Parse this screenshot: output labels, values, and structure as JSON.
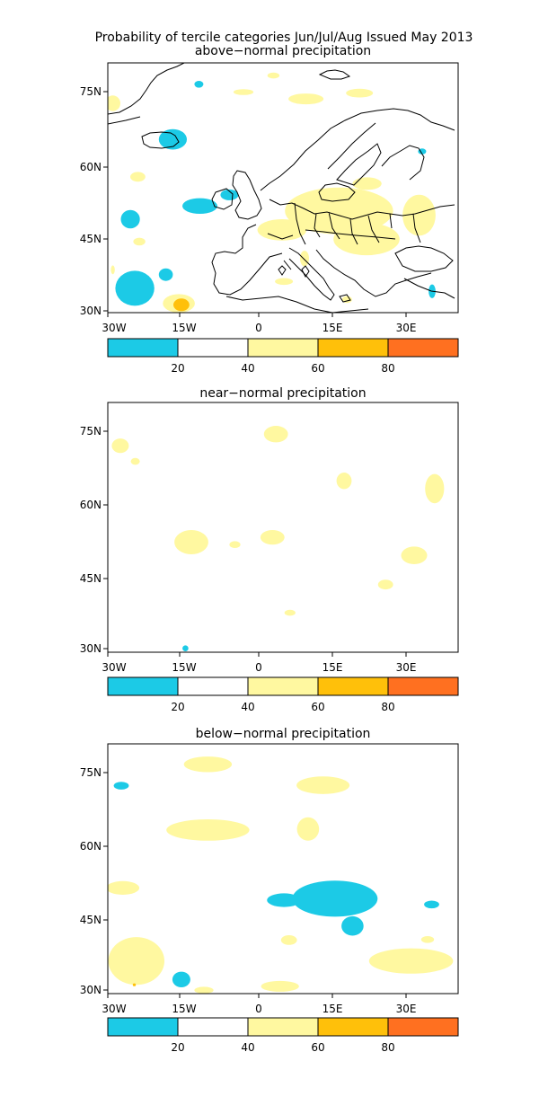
{
  "title_line1": "Probability of tercile categories Jun/Jul/Aug Issued May 2013",
  "colors": {
    "cyan": "#1ccae6",
    "white": "#ffffff",
    "yellow": "#fff8a0",
    "gold": "#ffc00a",
    "orange": "#ff7020"
  },
  "colorbar": {
    "labels": [
      "20",
      "40",
      "60",
      "80"
    ]
  },
  "axes": {
    "x_labels": [
      "30W",
      "15W",
      "0",
      "15E",
      "30E"
    ],
    "y_labels": [
      "75N",
      "60N",
      "45N",
      "30N"
    ]
  },
  "panels": [
    {
      "id": "above",
      "title": "above−normal precipitation",
      "fields": [
        {
          "cat": "yellow",
          "lon": -29,
          "lat": 72.7,
          "rlon": 1.5,
          "rlat": 1.6
        },
        {
          "cat": "cyan",
          "lon": -11.8,
          "lat": 76.6,
          "rlon": 0.9,
          "rlat": 0.7
        },
        {
          "cat": "yellow",
          "lon": -2.9,
          "lat": 75,
          "rlon": 2.0,
          "rlat": 0.6
        },
        {
          "cat": "yellow",
          "lon": 3.1,
          "lat": 78.4,
          "rlon": 1.2,
          "rlat": 0.6
        },
        {
          "cat": "yellow",
          "lon": 9.6,
          "lat": 73.6,
          "rlon": 3.5,
          "rlat": 1.1
        },
        {
          "cat": "yellow",
          "lon": 20.3,
          "lat": 74.8,
          "rlon": 2.7,
          "rlat": 0.9
        },
        {
          "cat": "cyan",
          "lon": -17,
          "lat": 65.3,
          "rlon": 2.8,
          "rlat": 2.1
        },
        {
          "cat": "yellow",
          "lon": -24,
          "lat": 57.6,
          "rlon": 1.5,
          "rlat": 1.0
        },
        {
          "cat": "cyan",
          "lon": -25.5,
          "lat": 48.9,
          "rlon": 1.9,
          "rlat": 1.9
        },
        {
          "cat": "cyan",
          "lon": -11.6,
          "lat": 51.6,
          "rlon": 3.5,
          "rlat": 1.6
        },
        {
          "cat": "cyan",
          "lon": -5.7,
          "lat": 53.9,
          "rlon": 1.8,
          "rlat": 1.1
        },
        {
          "cat": "cyan",
          "lon": 32.8,
          "lat": 62.8,
          "rlon": 0.8,
          "rlat": 0.6
        },
        {
          "cat": "yellow",
          "lon": -23.7,
          "lat": 44.3,
          "rlon": 1.2,
          "rlat": 0.8
        },
        {
          "cat": "yellow",
          "lon": -29,
          "lat": 38.5,
          "rlon": 0.4,
          "rlat": 0.9
        },
        {
          "cat": "cyan",
          "lon": -24.6,
          "lat": 34.7,
          "rlon": 3.9,
          "rlat": 3.6
        },
        {
          "cat": "cyan",
          "lon": -18.4,
          "lat": 37.5,
          "rlon": 1.4,
          "rlat": 1.3
        },
        {
          "cat": "yellow",
          "lon": -15.8,
          "lat": 31.6,
          "rlon": 3.2,
          "rlat": 1.9
        },
        {
          "cat": "gold",
          "lon": -15.3,
          "lat": 31.3,
          "rlon": 1.6,
          "rlat": 1.3
        },
        {
          "cat": "yellow",
          "lon": 16.2,
          "lat": 50.6,
          "rlon": 10.8,
          "rlat": 4.8
        },
        {
          "cat": "yellow",
          "lon": 21.7,
          "lat": 44.8,
          "rlon": 6.6,
          "rlat": 3.3
        },
        {
          "cat": "yellow",
          "lon": 32.2,
          "lat": 49.7,
          "rlon": 3.3,
          "rlat": 4.2
        },
        {
          "cat": "yellow",
          "lon": 4.8,
          "lat": 46.7,
          "rlon": 4.9,
          "rlat": 2.2
        },
        {
          "cat": "yellow",
          "lon": 9.3,
          "lat": 40.8,
          "rlon": 0.9,
          "rlat": 1.6
        },
        {
          "cat": "yellow",
          "lon": 21.8,
          "lat": 56.2,
          "rlon": 2.9,
          "rlat": 1.3
        },
        {
          "cat": "yellow",
          "lon": 5.2,
          "lat": 36.1,
          "rlon": 1.8,
          "rlat": 0.7
        },
        {
          "cat": "yellow",
          "lon": 17.8,
          "lat": 32.4,
          "rlon": 1.0,
          "rlat": 0.7
        },
        {
          "cat": "cyan",
          "lon": 34.8,
          "lat": 34.1,
          "rlon": 0.7,
          "rlat": 1.4
        }
      ]
    },
    {
      "id": "near",
      "title": "near−normal precipitation",
      "fields": [
        {
          "cat": "yellow",
          "lon": -27.5,
          "lat": 72.1,
          "rlon": 1.7,
          "rlat": 1.5
        },
        {
          "cat": "yellow",
          "lon": -24.5,
          "lat": 68.9,
          "rlon": 0.9,
          "rlat": 0.7
        },
        {
          "cat": "yellow",
          "lon": 3.6,
          "lat": 74.5,
          "rlon": 2.4,
          "rlat": 1.7
        },
        {
          "cat": "yellow",
          "lon": 17.2,
          "lat": 64.9,
          "rlon": 1.5,
          "rlat": 1.7
        },
        {
          "cat": "yellow",
          "lon": 35.3,
          "lat": 63.3,
          "rlon": 1.9,
          "rlat": 3.0
        },
        {
          "cat": "yellow",
          "lon": -13.3,
          "lat": 52.3,
          "rlon": 3.4,
          "rlat": 2.5
        },
        {
          "cat": "yellow",
          "lon": 2.9,
          "lat": 53.3,
          "rlon": 2.4,
          "rlat": 1.5
        },
        {
          "cat": "yellow",
          "lon": -4.6,
          "lat": 51.8,
          "rlon": 1.1,
          "rlat": 0.7
        },
        {
          "cat": "yellow",
          "lon": 31.2,
          "lat": 49.6,
          "rlon": 2.6,
          "rlat": 1.8
        },
        {
          "cat": "yellow",
          "lon": 25.5,
          "lat": 43.6,
          "rlon": 1.5,
          "rlat": 1.0
        },
        {
          "cat": "yellow",
          "lon": 6.4,
          "lat": 37.8,
          "rlon": 1.1,
          "rlat": 0.6
        },
        {
          "cat": "cyan",
          "lon": -14.5,
          "lat": 30.5,
          "rlon": 0.6,
          "rlat": 0.6
        }
      ]
    },
    {
      "id": "below",
      "title": "below−normal precipitation",
      "fields": [
        {
          "cat": "cyan",
          "lon": -27.3,
          "lat": 72.4,
          "rlon": 1.5,
          "rlat": 0.8
        },
        {
          "cat": "yellow",
          "lon": -10,
          "lat": 76.8,
          "rlon": 4.8,
          "rlat": 1.6
        },
        {
          "cat": "yellow",
          "lon": 13,
          "lat": 72.5,
          "rlon": 5.3,
          "rlat": 1.8
        },
        {
          "cat": "yellow",
          "lon": -10,
          "lat": 63.3,
          "rlon": 8.3,
          "rlat": 2.2
        },
        {
          "cat": "yellow",
          "lon": 10,
          "lat": 63.5,
          "rlon": 2.2,
          "rlat": 2.4
        },
        {
          "cat": "yellow",
          "lon": -27,
          "lat": 51.4,
          "rlon": 3.3,
          "rlat": 1.4
        },
        {
          "cat": "yellow",
          "lon": -24.3,
          "lat": 36.4,
          "rlon": 5.6,
          "rlat": 4.9
        },
        {
          "cat": "gold",
          "lon": -24.7,
          "lat": 31.5,
          "rlon": 0.3,
          "rlat": 0.3
        },
        {
          "cat": "cyan",
          "lon": -15.3,
          "lat": 32.6,
          "rlon": 1.8,
          "rlat": 1.6
        },
        {
          "cat": "yellow",
          "lon": -10.8,
          "lat": 30.4,
          "rlon": 1.9,
          "rlat": 0.7
        },
        {
          "cat": "yellow",
          "lon": 30.6,
          "lat": 36.4,
          "rlon": 8.4,
          "rlat": 2.6
        },
        {
          "cat": "yellow",
          "lon": 4.4,
          "lat": 31.2,
          "rlon": 3.8,
          "rlat": 1.1
        },
        {
          "cat": "cyan",
          "lon": 15.4,
          "lat": 49.2,
          "rlon": 8.5,
          "rlat": 3.7
        },
        {
          "cat": "cyan",
          "lon": 5.2,
          "lat": 48.9,
          "rlon": 3.4,
          "rlat": 1.4
        },
        {
          "cat": "cyan",
          "lon": 18.9,
          "lat": 43.6,
          "rlon": 2.2,
          "rlat": 2.0
        },
        {
          "cat": "cyan",
          "lon": 34.7,
          "lat": 48,
          "rlon": 1.5,
          "rlat": 0.8
        },
        {
          "cat": "yellow",
          "lon": 33.9,
          "lat": 40.8,
          "rlon": 1.3,
          "rlat": 0.7
        },
        {
          "cat": "yellow",
          "lon": 6.2,
          "lat": 40.7,
          "rlon": 1.6,
          "rlat": 1.0
        }
      ]
    }
  ],
  "map_extent": {
    "lon": [
      -30,
      40
    ],
    "lat": [
      29.7,
      81
    ]
  }
}
